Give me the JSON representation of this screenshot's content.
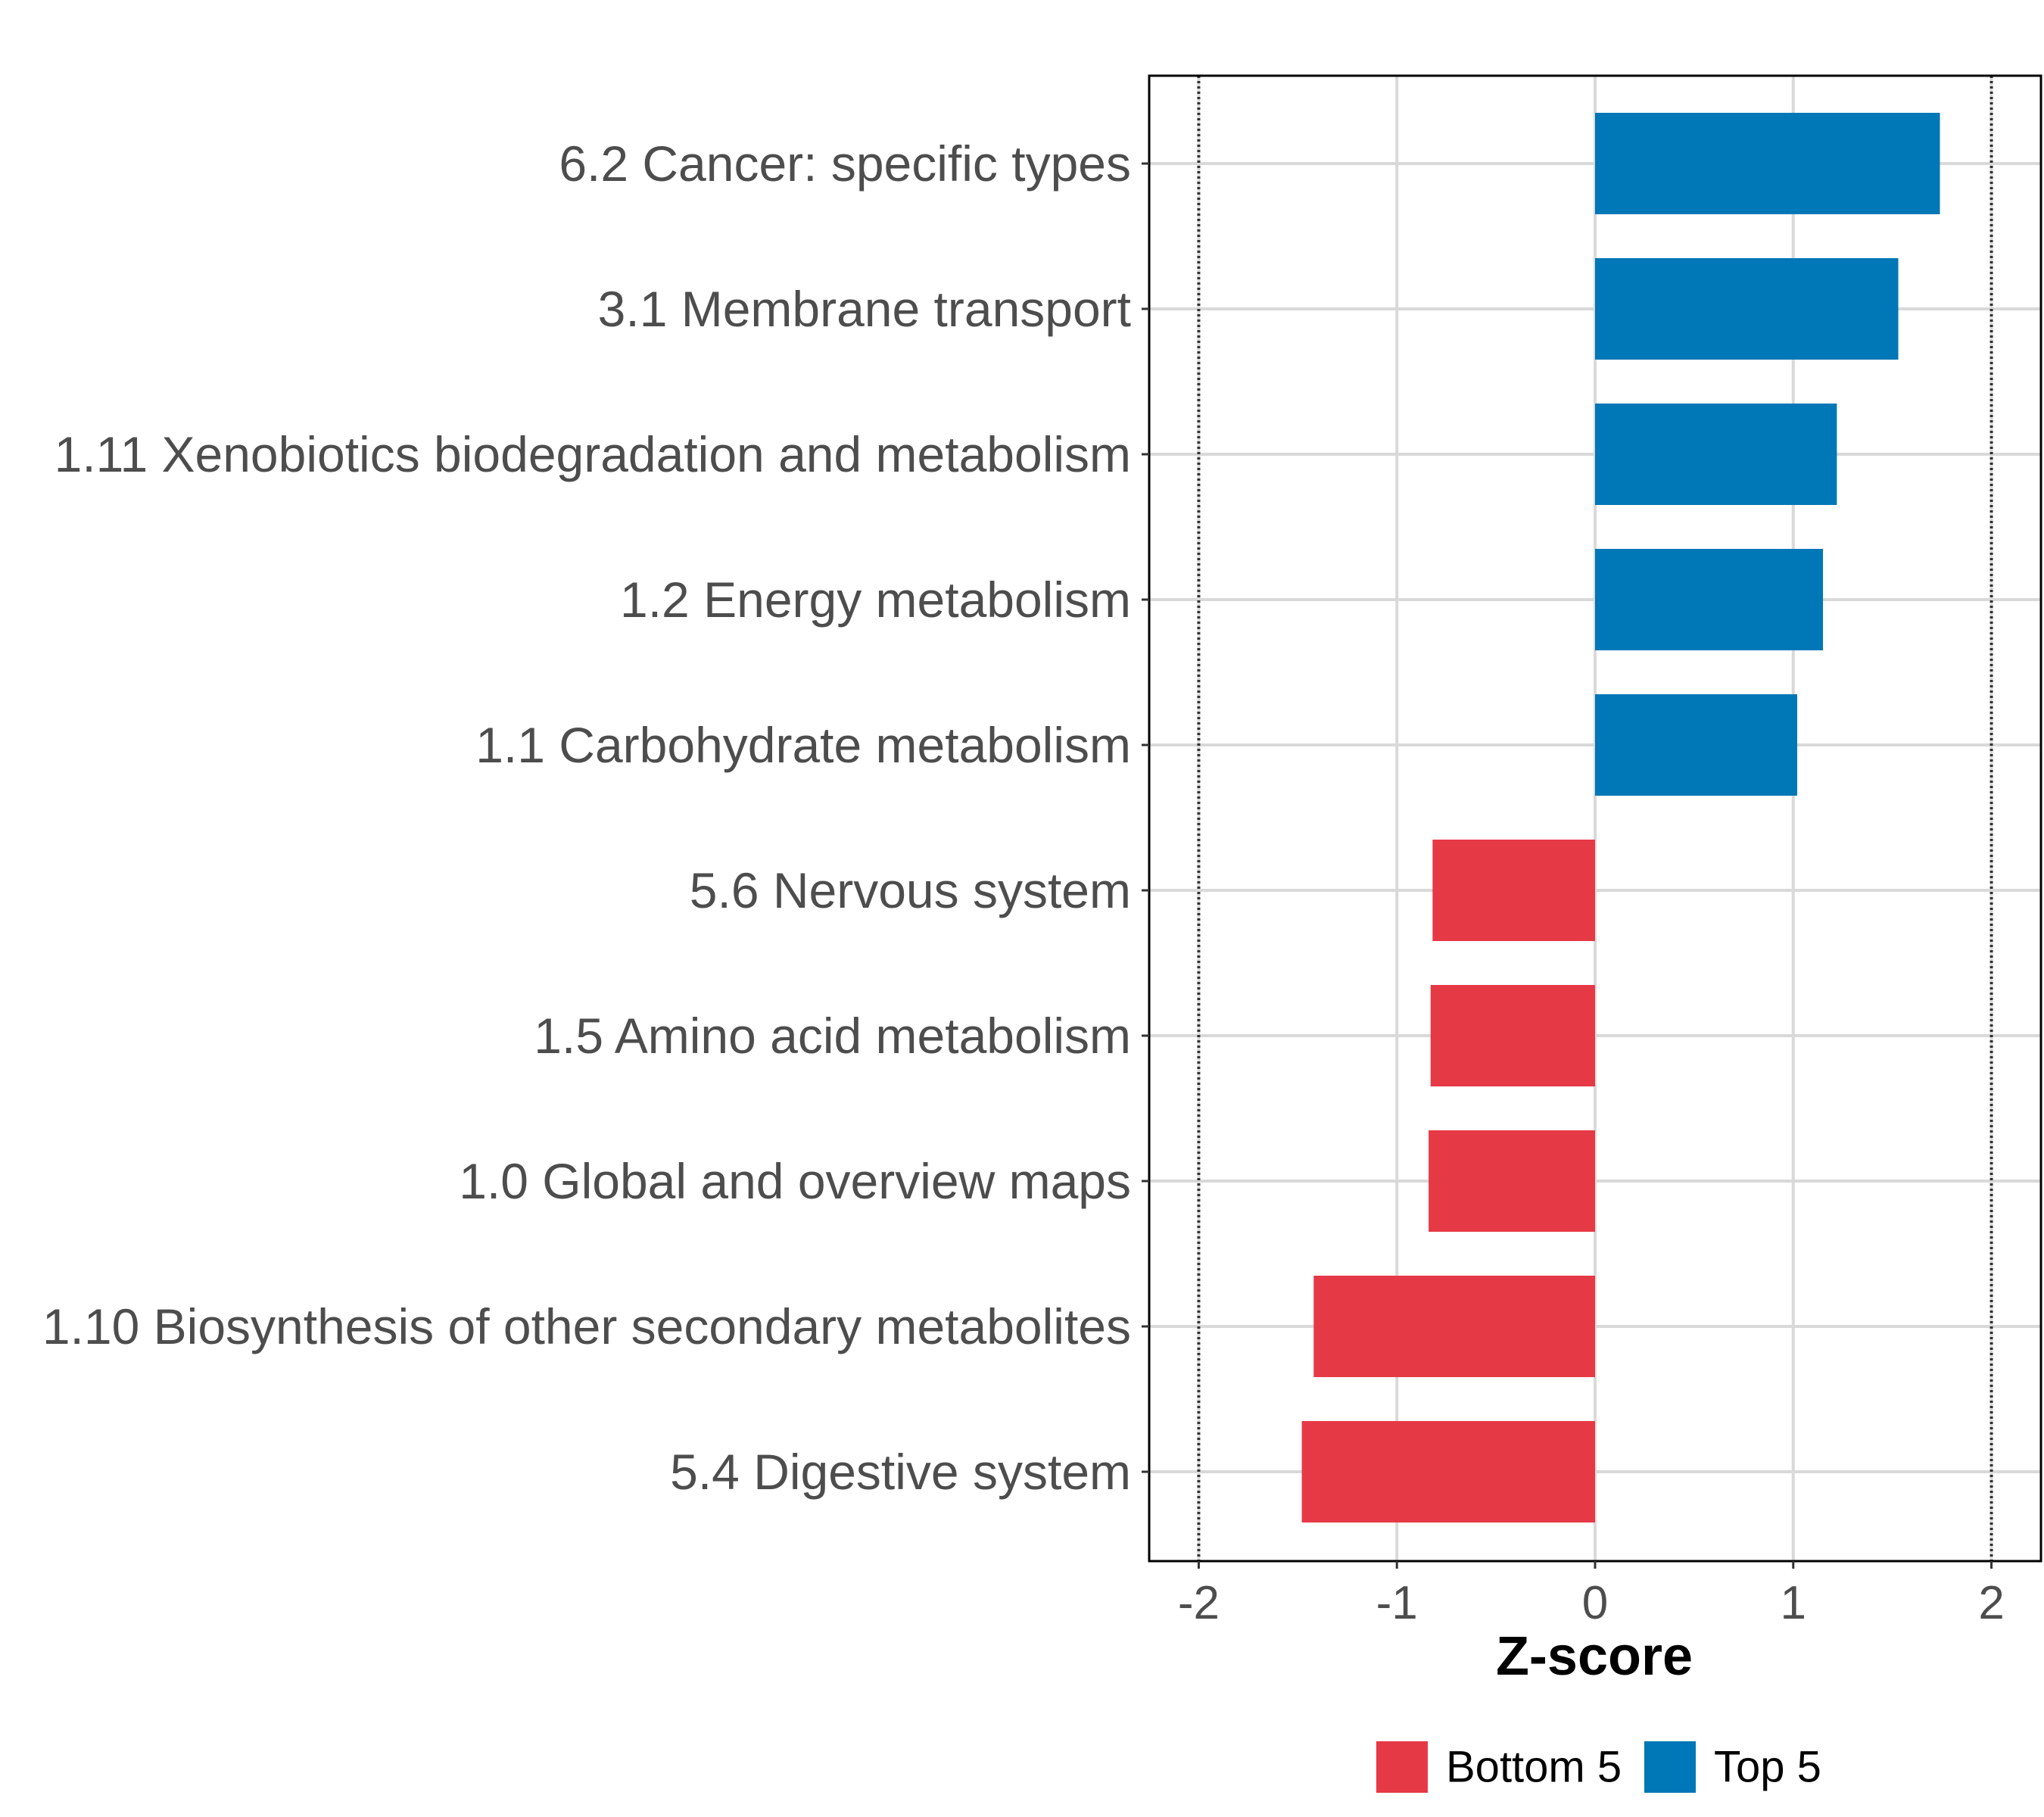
{
  "chart_data": {
    "type": "bar",
    "orientation": "horizontal",
    "title": "",
    "xlabel": "Z-score",
    "ylabel": "",
    "xlim": [
      -2.25,
      2.25
    ],
    "xticks": [
      -2,
      -1,
      0,
      1,
      2
    ],
    "xtick_labels": [
      "-2",
      "-1",
      "0",
      "1",
      "2"
    ],
    "reference_lines": [
      -2,
      2
    ],
    "grid": true,
    "categories": [
      "6.2 Cancer: specific types",
      "3.1 Membrane transport",
      "1.11 Xenobiotics biodegradation and metabolism",
      "1.2 Energy metabolism",
      "1.1 Carbohydrate metabolism",
      "5.6 Nervous system",
      "1.5 Amino acid metabolism",
      "1.0 Global and overview maps",
      "1.10 Biosynthesis of other secondary metabolites",
      "5.4 Digestive system"
    ],
    "values": [
      1.74,
      1.53,
      1.22,
      1.15,
      1.02,
      -0.82,
      -0.83,
      -0.84,
      -1.42,
      -1.48
    ],
    "groups": [
      "Top 5",
      "Top 5",
      "Top 5",
      "Top 5",
      "Top 5",
      "Bottom 5",
      "Bottom 5",
      "Bottom 5",
      "Bottom 5",
      "Bottom 5"
    ],
    "legend": [
      {
        "name": "Bottom 5",
        "color": "#e63946"
      },
      {
        "name": "Top 5",
        "color": "#0077b6"
      }
    ],
    "legend_position": "bottom"
  }
}
